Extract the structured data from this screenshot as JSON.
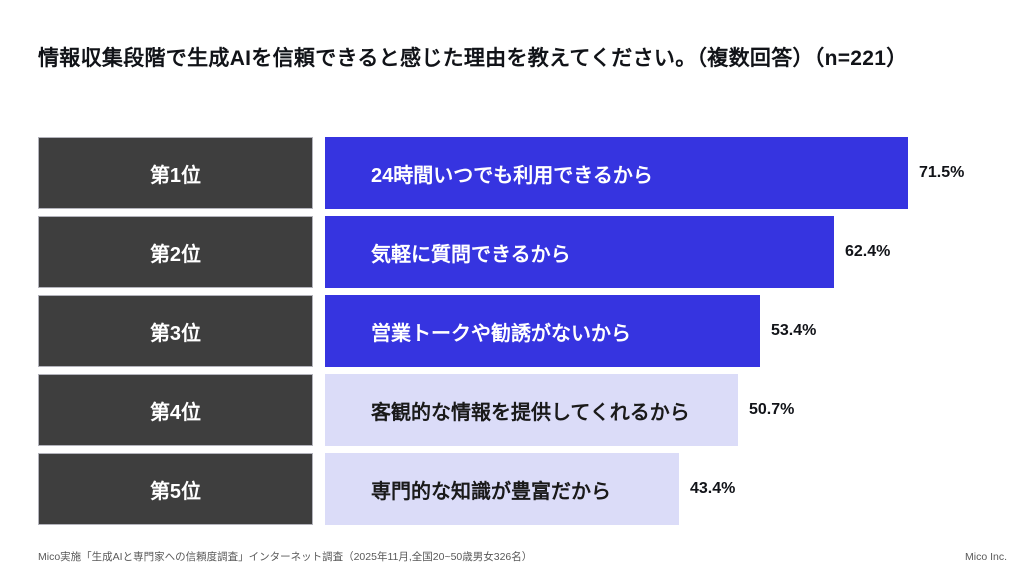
{
  "page": {
    "title": "情報収集段階で生成AIを信頼できると感じた理由を教えてください。（複数回答）（n=221）",
    "source_note": "Mico実施「生成AIと専門家への信頼度調査」インターネット調査（2025年11月,全国20~50歳男女326名）",
    "credit": "Mico Inc."
  },
  "colors": {
    "bar_primary": "#3634e0",
    "bar_secondary": "#dbdcf8",
    "rank_box": "#3e3e3e",
    "text_on_primary": "#ffffff",
    "text_on_secondary": "#1a1a1a"
  },
  "chart_data": {
    "type": "bar",
    "orientation": "horizontal",
    "title": "情報収集段階で生成AIを信頼できると感じた理由を教えてください。（複数回答）（n=221）",
    "sample_size": 221,
    "unit": "%",
    "xlim": [
      0,
      75
    ],
    "grid": false,
    "legend": false,
    "categories": [
      "第1位",
      "第2位",
      "第3位",
      "第4位",
      "第5位"
    ],
    "rows": [
      {
        "rank": "第1位",
        "label": "24時間いつでも利用できるから",
        "value": 71.5,
        "value_label": "71.5%",
        "emphasis": true
      },
      {
        "rank": "第2位",
        "label": "気軽に質問できるから",
        "value": 62.4,
        "value_label": "62.4%",
        "emphasis": true
      },
      {
        "rank": "第3位",
        "label": "営業トークや勧誘がないから",
        "value": 53.4,
        "value_label": "53.4%",
        "emphasis": true
      },
      {
        "rank": "第4位",
        "label": "客観的な情報を提供してくれるから",
        "value": 50.7,
        "value_label": "50.7%",
        "emphasis": false
      },
      {
        "rank": "第5位",
        "label": "専門的な知識が豊富だから",
        "value": 43.4,
        "value_label": "43.4%",
        "emphasis": false
      }
    ]
  }
}
